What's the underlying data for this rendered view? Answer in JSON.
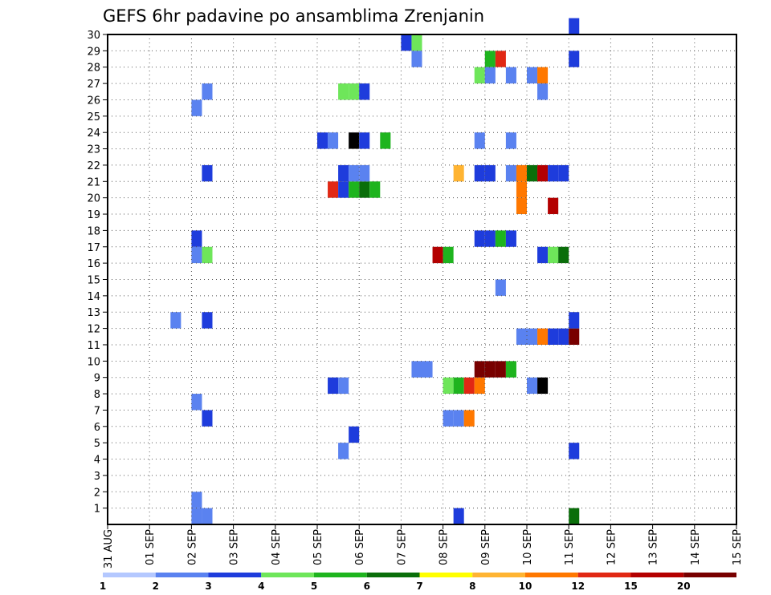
{
  "chart_data": {
    "type": "heatmap",
    "title": "GEFS 6hr padavine po ansamblima Zrenjanin",
    "xlabel": "",
    "ylabel": "",
    "x_ticks": [
      "31 AUG",
      "01 SEP",
      "02 SEP",
      "03 SEP",
      "04 SEP",
      "05 SEP",
      "06 SEP",
      "07 SEP",
      "08 SEP",
      "09 SEP",
      "10 SEP",
      "11 SEP",
      "12 SEP",
      "13 SEP",
      "14 SEP",
      "15 SEP"
    ],
    "x_range_steps": [
      0,
      60
    ],
    "y_ticks": [
      1,
      2,
      3,
      4,
      5,
      6,
      7,
      8,
      9,
      10,
      11,
      12,
      13,
      14,
      15,
      16,
      17,
      18,
      19,
      20,
      21,
      22,
      23,
      24,
      25,
      26,
      27,
      28,
      29,
      30
    ],
    "y_range": [
      0,
      30
    ],
    "grid": true,
    "colorbar": {
      "colors": [
        "#b4c8ff",
        "#5a82f0",
        "#1e3cdc",
        "#6ee65a",
        "#1eb41e",
        "#0a6e0a",
        "#ffff00",
        "#ffb432",
        "#ff7800",
        "#e12814",
        "#b40000",
        "#780000"
      ],
      "labels": [
        "1",
        "2",
        "3",
        "4",
        "5",
        "6",
        "7",
        "8",
        "10",
        "12",
        "15",
        "20"
      ]
    },
    "cells": [
      [
        8,
        1,
        1
      ],
      [
        8,
        0,
        1
      ],
      [
        9,
        0,
        1
      ],
      [
        9,
        6,
        2
      ],
      [
        8,
        7,
        1
      ],
      [
        9,
        12,
        2
      ],
      [
        6,
        12,
        1
      ],
      [
        9,
        16,
        3
      ],
      [
        8,
        16,
        1
      ],
      [
        8,
        17,
        2
      ],
      [
        9,
        21,
        2
      ],
      [
        8,
        25,
        1
      ],
      [
        9,
        26,
        1
      ],
      [
        22,
        4,
        1
      ],
      [
        23,
        5,
        2
      ],
      [
        21,
        8,
        2
      ],
      [
        22,
        8,
        1
      ],
      [
        21,
        20,
        9
      ],
      [
        22,
        20,
        2
      ],
      [
        23,
        20,
        4
      ],
      [
        24,
        20,
        5
      ],
      [
        25,
        20,
        4
      ],
      [
        22,
        21,
        2
      ],
      [
        23,
        21,
        1
      ],
      [
        24,
        21,
        1
      ],
      [
        20,
        23,
        2
      ],
      [
        21,
        23,
        1
      ],
      [
        23,
        23,
        12
      ],
      [
        24,
        23,
        2
      ],
      [
        26,
        23,
        4
      ],
      [
        22,
        26,
        3
      ],
      [
        23,
        26,
        3
      ],
      [
        24,
        26,
        2
      ],
      [
        29,
        9,
        1
      ],
      [
        30,
        9,
        1
      ],
      [
        28,
        29,
        2
      ],
      [
        29,
        29,
        3
      ],
      [
        29,
        28,
        1
      ],
      [
        33,
        0,
        2
      ],
      [
        32,
        6,
        1
      ],
      [
        33,
        6,
        1
      ],
      [
        34,
        6,
        8
      ],
      [
        32,
        8,
        3
      ],
      [
        33,
        8,
        4
      ],
      [
        34,
        8,
        9
      ],
      [
        35,
        8,
        8
      ],
      [
        35,
        9,
        11
      ],
      [
        36,
        9,
        11
      ],
      [
        37,
        9,
        11
      ],
      [
        38,
        9,
        4
      ],
      [
        31,
        16,
        10
      ],
      [
        32,
        16,
        4
      ],
      [
        35,
        17,
        2
      ],
      [
        36,
        17,
        2
      ],
      [
        37,
        17,
        4
      ],
      [
        38,
        17,
        2
      ],
      [
        33,
        21,
        7
      ],
      [
        35,
        21,
        2
      ],
      [
        36,
        21,
        2
      ],
      [
        38,
        21,
        1
      ],
      [
        35,
        23,
        1
      ],
      [
        38,
        23,
        1
      ],
      [
        36,
        28,
        4
      ],
      [
        37,
        28,
        9
      ],
      [
        35,
        27,
        3
      ],
      [
        36,
        27,
        1
      ],
      [
        38,
        27,
        1
      ],
      [
        40,
        27,
        1
      ],
      [
        41,
        27,
        8
      ],
      [
        41,
        26,
        1
      ],
      [
        37,
        14,
        1
      ],
      [
        41,
        8,
        12
      ],
      [
        40,
        8,
        1
      ],
      [
        39,
        11,
        1
      ],
      [
        40,
        11,
        1
      ],
      [
        41,
        11,
        8
      ],
      [
        42,
        11,
        2
      ],
      [
        43,
        11,
        2
      ],
      [
        44,
        11,
        11
      ],
      [
        44,
        12,
        2
      ],
      [
        41,
        16,
        2
      ],
      [
        42,
        16,
        3
      ],
      [
        43,
        16,
        5
      ],
      [
        42,
        19,
        10
      ],
      [
        39,
        21,
        8
      ],
      [
        40,
        21,
        5
      ],
      [
        41,
        21,
        10
      ],
      [
        42,
        21,
        2
      ],
      [
        43,
        21,
        2
      ],
      [
        39,
        20,
        8
      ],
      [
        39,
        19,
        8
      ],
      [
        44,
        0,
        5
      ],
      [
        44,
        4,
        2
      ],
      [
        44,
        28,
        2
      ],
      [
        44,
        30,
        2
      ]
    ]
  }
}
